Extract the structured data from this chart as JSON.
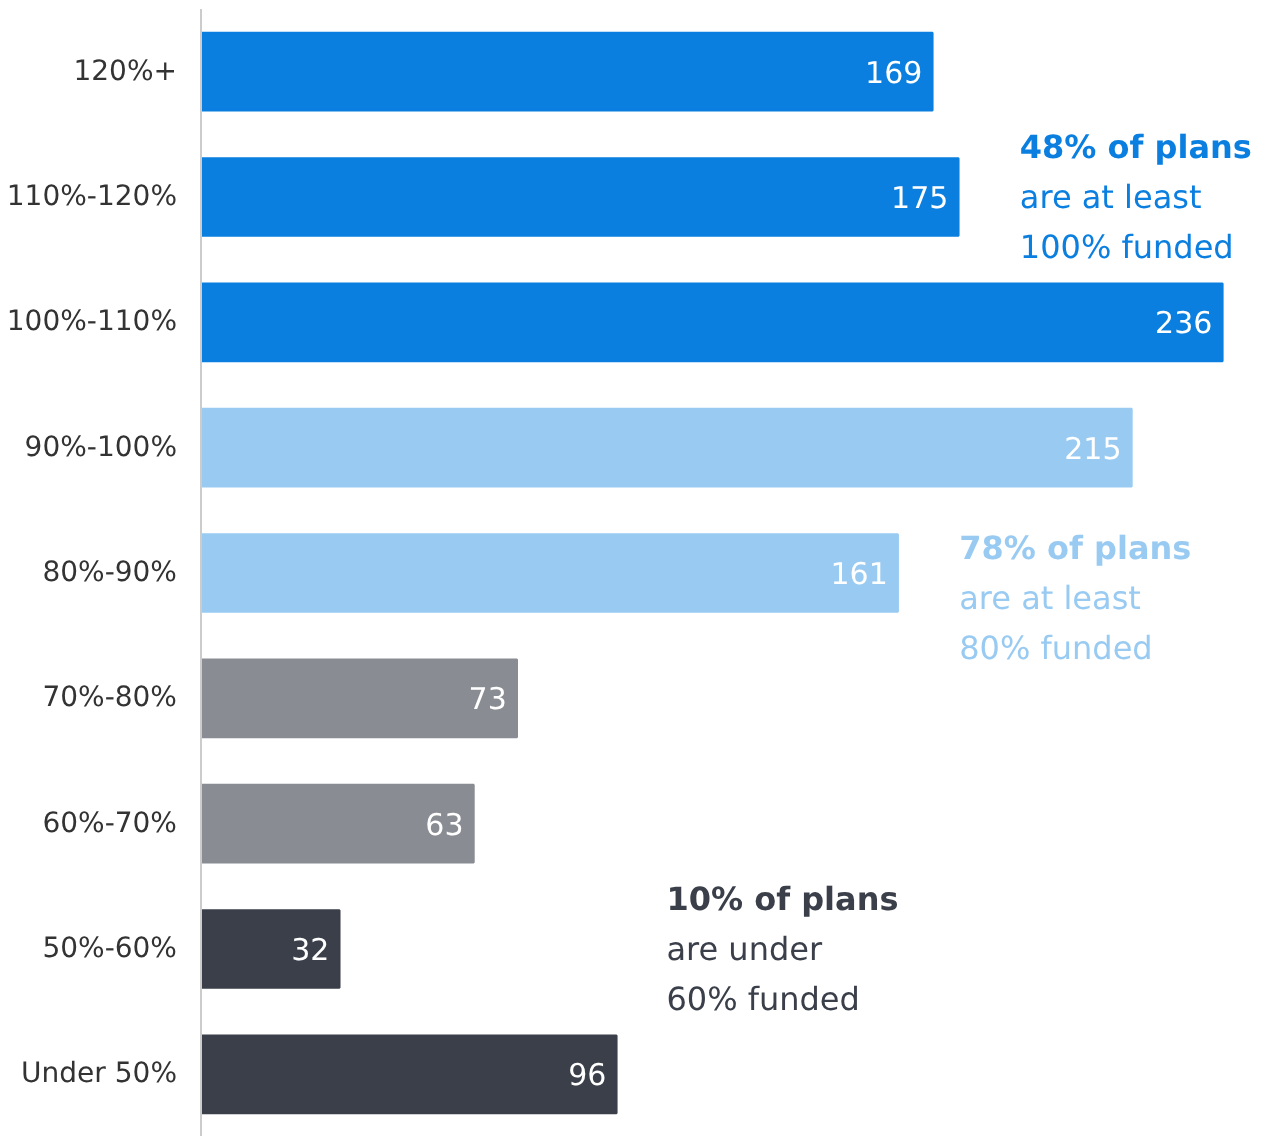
{
  "chart_data": {
    "type": "bar",
    "orientation": "horizontal",
    "categories": [
      "120%+",
      "110%-120%",
      "100%-110%",
      "90%-100%",
      "80%-90%",
      "70%-80%",
      "60%-70%",
      "50%-60%",
      "Under 50%"
    ],
    "values": [
      169,
      175,
      236,
      215,
      161,
      73,
      63,
      32,
      96
    ],
    "colors": [
      "#0a7fe0",
      "#0a7fe0",
      "#0a7fe0",
      "#99cbf2",
      "#99cbf2",
      "#898c93",
      "#898c93",
      "#3a3f4a",
      "#3a3f4a"
    ],
    "data_labels": true,
    "grid": false,
    "annotations": [
      "48% of plans\nare at least\n100% funded",
      "78% of plans\nare at least\n80% funded",
      "10% of plans\nare under\n60% funded"
    ]
  }
}
